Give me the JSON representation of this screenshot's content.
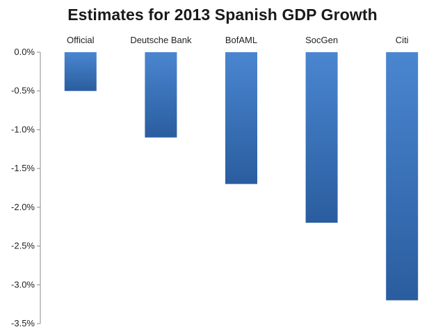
{
  "chart_data": {
    "type": "bar",
    "title": "Estimates for 2013 Spanish GDP Growth",
    "categories": [
      "Official",
      "Deutsche Bank",
      "BofAML",
      "SocGen",
      "Citi"
    ],
    "values": [
      -0.5,
      -1.1,
      -1.7,
      -2.2,
      -3.2
    ],
    "y_ticks": [
      0.0,
      -0.5,
      -1.0,
      -1.5,
      -2.0,
      -2.5,
      -3.0,
      -3.5
    ],
    "y_tick_labels": [
      "0.0%",
      "-0.5%",
      "-1.0%",
      "-1.5%",
      "-2.0%",
      "-2.5%",
      "-3.0%",
      "-3.5%"
    ],
    "ylim": [
      -3.5,
      0.0
    ],
    "xlabel": "",
    "ylabel": "",
    "category_labels_position": "top",
    "grid": false,
    "legend": "none",
    "bar_color_top": "#4a86d0",
    "bar_color_bottom": "#2a5d9f"
  }
}
